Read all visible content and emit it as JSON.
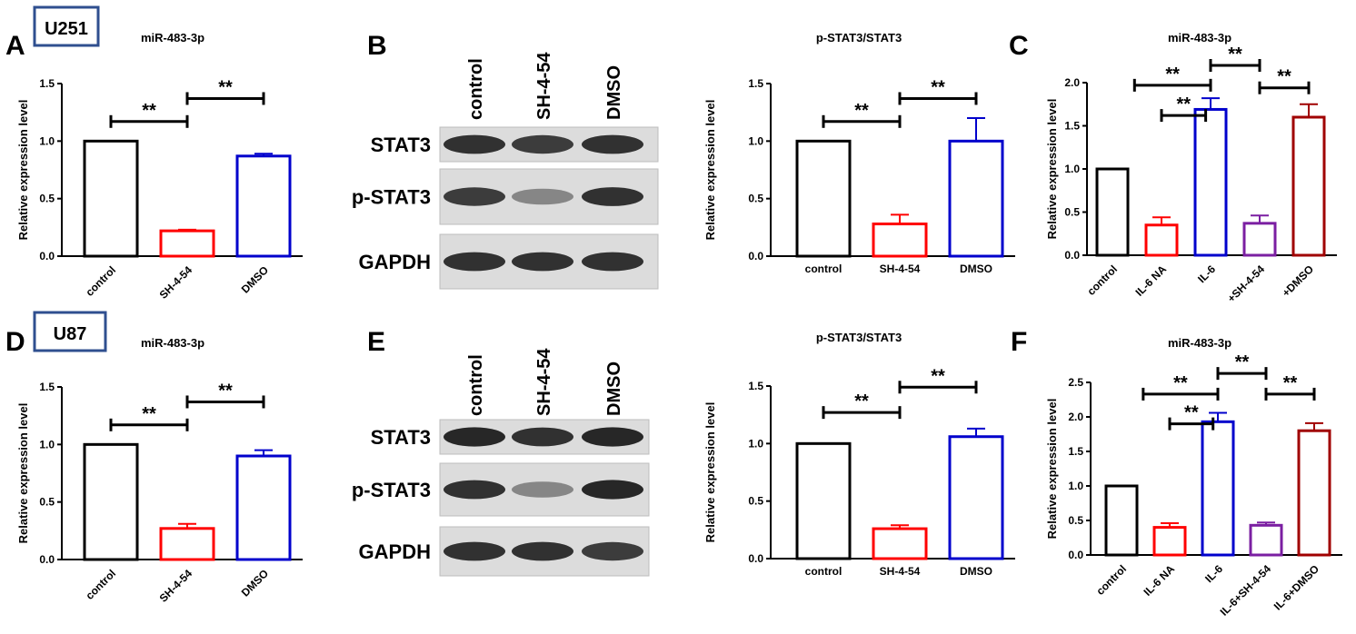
{
  "panels": {
    "A": "A",
    "B": "B",
    "C": "C",
    "D": "D",
    "E": "E",
    "F": "F"
  },
  "cell_lines": {
    "top": "U251",
    "bottom": "U87"
  },
  "colors": {
    "control": "#000000",
    "sh": "#ff0000",
    "dmso": "#0000cc",
    "il6": "#0000cc",
    "combo": "#7b1fa2",
    "il6dmso": "#a00000"
  },
  "blots": {
    "B": {
      "lanes": [
        "control",
        "SH-4-54",
        "DMSO"
      ],
      "rows": [
        {
          "label": "STAT3",
          "intensity": [
            0.85,
            0.8,
            0.85
          ]
        },
        {
          "label": "p-STAT3",
          "intensity": [
            0.8,
            0.45,
            0.85
          ]
        },
        {
          "label": "GAPDH",
          "intensity": [
            0.85,
            0.85,
            0.85
          ]
        }
      ]
    },
    "E": {
      "lanes": [
        "control",
        "SH-4-54",
        "DMSO"
      ],
      "rows": [
        {
          "label": "STAT3",
          "intensity": [
            0.9,
            0.85,
            0.9
          ]
        },
        {
          "label": "p-STAT3",
          "intensity": [
            0.85,
            0.45,
            0.9
          ]
        },
        {
          "label": "GAPDH",
          "intensity": [
            0.85,
            0.85,
            0.8
          ]
        }
      ]
    }
  },
  "chart_data": [
    {
      "id": "A",
      "type": "bar",
      "title": "miR-483-3p",
      "ylabel": "Relative expression level",
      "categories": [
        "control",
        "SH-4-54",
        "DMSO"
      ],
      "values": [
        1.0,
        0.22,
        0.87
      ],
      "errors": [
        0,
        0.01,
        0.02
      ],
      "colors": [
        "#000000",
        "#ff0000",
        "#0000cc"
      ],
      "ylim": [
        0,
        1.5
      ],
      "yticks": [
        "0.0",
        "0.5",
        "1.0",
        "1.5"
      ],
      "significance": [
        {
          "from": 0,
          "to": 1,
          "label": "**",
          "y": 1.17
        },
        {
          "from": 1,
          "to": 2,
          "label": "**",
          "y": 1.37
        }
      ],
      "rotate_labels": true
    },
    {
      "id": "B",
      "type": "bar",
      "title": "p-STAT3/STAT3",
      "ylabel": "Relative expression level",
      "categories": [
        "control",
        "SH-4-54",
        "DMSO"
      ],
      "values": [
        1.0,
        0.28,
        1.0
      ],
      "errors": [
        0,
        0.08,
        0.2
      ],
      "colors": [
        "#000000",
        "#ff0000",
        "#0000cc"
      ],
      "ylim": [
        0,
        1.5
      ],
      "yticks": [
        "0.0",
        "0.5",
        "1.0",
        "1.5"
      ],
      "significance": [
        {
          "from": 0,
          "to": 1,
          "label": "**",
          "y": 1.17
        },
        {
          "from": 1,
          "to": 2,
          "label": "**",
          "y": 1.37
        }
      ],
      "rotate_labels": false
    },
    {
      "id": "C",
      "type": "bar",
      "title": "miR-483-3p",
      "ylabel": "Relative expression level",
      "categories": [
        "control",
        "IL-6 NA",
        "IL-6",
        "+SH-4-54",
        "+DMSO"
      ],
      "values": [
        1.0,
        0.35,
        1.69,
        0.37,
        1.6
      ],
      "errors": [
        0,
        0.09,
        0.13,
        0.09,
        0.15
      ],
      "colors": [
        "#000000",
        "#ff0000",
        "#0000cc",
        "#7b1fa2",
        "#a00000"
      ],
      "ylim": [
        0,
        2.0
      ],
      "yticks": [
        "0.0",
        "0.5",
        "1.0",
        "1.5",
        "2.0"
      ],
      "significance": [
        {
          "from": 1,
          "to": 1.9,
          "label": "**",
          "y": 1.62,
          "x0": 0.45
        },
        {
          "from": 0.45,
          "to": 2,
          "label": "**",
          "y": 1.97
        },
        {
          "from": 2,
          "to": 3,
          "label": "**",
          "y": 2.2
        },
        {
          "from": 3,
          "to": 4,
          "label": "**",
          "y": 1.94
        }
      ],
      "rotate_labels": true
    },
    {
      "id": "D",
      "type": "bar",
      "title": "miR-483-3p",
      "ylabel": "Relative expression level",
      "categories": [
        "control",
        "SH-4-54",
        "DMSO"
      ],
      "values": [
        1.0,
        0.27,
        0.9
      ],
      "errors": [
        0,
        0.04,
        0.05
      ],
      "colors": [
        "#000000",
        "#ff0000",
        "#0000cc"
      ],
      "ylim": [
        0,
        1.5
      ],
      "yticks": [
        "0.0",
        "0.5",
        "1.0",
        "1.5"
      ],
      "significance": [
        {
          "from": 0,
          "to": 1,
          "label": "**",
          "y": 1.17
        },
        {
          "from": 1,
          "to": 2,
          "label": "**",
          "y": 1.37
        }
      ],
      "rotate_labels": true
    },
    {
      "id": "E",
      "type": "bar",
      "title": "p-STAT3/STAT3",
      "ylabel": "Relative expression level",
      "categories": [
        "control",
        "SH-4-54",
        "DMSO"
      ],
      "values": [
        1.0,
        0.26,
        1.06
      ],
      "errors": [
        0,
        0.03,
        0.07
      ],
      "colors": [
        "#000000",
        "#ff0000",
        "#0000cc"
      ],
      "ylim": [
        0,
        1.5
      ],
      "yticks": [
        "0.0",
        "0.5",
        "1.0",
        "1.5"
      ],
      "significance": [
        {
          "from": 0,
          "to": 1,
          "label": "**",
          "y": 1.27
        },
        {
          "from": 1,
          "to": 2,
          "label": "**",
          "y": 1.49
        }
      ],
      "rotate_labels": false
    },
    {
      "id": "F",
      "type": "bar",
      "title": "miR-483-3p",
      "ylabel": "Relative expression level",
      "categories": [
        "control",
        "IL-6 NA",
        "IL-6",
        "IL-6+SH-4-54",
        "IL-6+DMSO"
      ],
      "values": [
        1.0,
        0.4,
        1.93,
        0.43,
        1.8
      ],
      "errors": [
        0,
        0.06,
        0.13,
        0.04,
        0.11
      ],
      "colors": [
        "#000000",
        "#ff0000",
        "#0000cc",
        "#7b1fa2",
        "#a00000"
      ],
      "ylim": [
        0,
        2.5
      ],
      "yticks": [
        "0.0",
        "0.5",
        "1.0",
        "1.5",
        "2.0",
        "2.5"
      ],
      "significance": [
        {
          "from": 1,
          "to": 1.9,
          "label": "**",
          "y": 1.9,
          "x0": 0.45
        },
        {
          "from": 0.45,
          "to": 2,
          "label": "**",
          "y": 2.33
        },
        {
          "from": 2,
          "to": 3,
          "label": "**",
          "y": 2.63
        },
        {
          "from": 3,
          "to": 4,
          "label": "**",
          "y": 2.33
        }
      ],
      "rotate_labels": true
    }
  ]
}
